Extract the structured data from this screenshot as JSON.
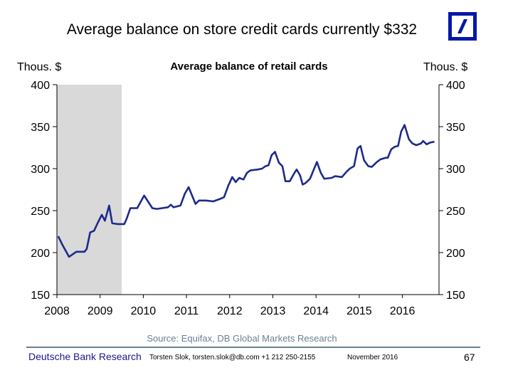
{
  "slide": {
    "title": "Average balance on store credit cards currently $332",
    "source": "Source: Equifax, DB Global Markets Research"
  },
  "logo": {
    "name": "Deutsche Bank logo",
    "color": "#0018a8"
  },
  "footer": {
    "brand": "Deutsche Bank Research",
    "contact": "Torsten Slok, torsten.slok@db.com  +1 212 250-2155",
    "date": "November 2016",
    "page": "67"
  },
  "chart_data": {
    "type": "line",
    "title": "Average balance of retail cards",
    "ylabel_left": "Thous. $",
    "ylabel_right": "Thous. $",
    "xlabel": "",
    "xlim": [
      2008,
      2016.85
    ],
    "ylim": [
      150,
      400
    ],
    "yticks": [
      150,
      200,
      250,
      300,
      350,
      400
    ],
    "xticks": [
      "2008",
      "2009",
      "2010",
      "2011",
      "2012",
      "2013",
      "2014",
      "2015",
      "2016"
    ],
    "grid": false,
    "legend": "none",
    "line_color": "#1c2a8c",
    "shaded_region": {
      "x0": 2008,
      "x1": 2009.5,
      "label": "recession",
      "color": "#d9d9d9"
    },
    "series": [
      {
        "name": "Average balance of retail cards",
        "points": [
          [
            2008.03,
            219.5
          ],
          [
            2008.13,
            209
          ],
          [
            2008.28,
            195
          ],
          [
            2008.45,
            201
          ],
          [
            2008.64,
            201
          ],
          [
            2008.69,
            204.5
          ],
          [
            2008.77,
            224
          ],
          [
            2008.86,
            226
          ],
          [
            2008.95,
            236
          ],
          [
            2009.04,
            245
          ],
          [
            2009.11,
            238
          ],
          [
            2009.21,
            256
          ],
          [
            2009.28,
            235
          ],
          [
            2009.4,
            234
          ],
          [
            2009.56,
            234
          ],
          [
            2009.62,
            241
          ],
          [
            2009.7,
            253
          ],
          [
            2009.86,
            253
          ],
          [
            2010.02,
            268
          ],
          [
            2010.21,
            253
          ],
          [
            2010.31,
            252
          ],
          [
            2010.57,
            254
          ],
          [
            2010.64,
            257
          ],
          [
            2010.7,
            254
          ],
          [
            2010.86,
            256
          ],
          [
            2010.96,
            270
          ],
          [
            2011.05,
            278
          ],
          [
            2011.21,
            258
          ],
          [
            2011.29,
            262
          ],
          [
            2011.45,
            262
          ],
          [
            2011.62,
            261
          ],
          [
            2011.78,
            264
          ],
          [
            2011.87,
            266
          ],
          [
            2011.97,
            280
          ],
          [
            2012.06,
            290
          ],
          [
            2012.14,
            284
          ],
          [
            2012.22,
            289
          ],
          [
            2012.32,
            287
          ],
          [
            2012.4,
            295
          ],
          [
            2012.48,
            298
          ],
          [
            2012.65,
            299
          ],
          [
            2012.75,
            300
          ],
          [
            2012.83,
            303
          ],
          [
            2012.9,
            304
          ],
          [
            2012.97,
            316
          ],
          [
            2013.05,
            320
          ],
          [
            2013.14,
            307
          ],
          [
            2013.22,
            303
          ],
          [
            2013.29,
            285
          ],
          [
            2013.39,
            285
          ],
          [
            2013.49,
            294
          ],
          [
            2013.55,
            299
          ],
          [
            2013.63,
            292
          ],
          [
            2013.69,
            281
          ],
          [
            2013.76,
            283
          ],
          [
            2013.86,
            288
          ],
          [
            2014.02,
            308
          ],
          [
            2014.11,
            295
          ],
          [
            2014.19,
            288
          ],
          [
            2014.36,
            289
          ],
          [
            2014.44,
            291
          ],
          [
            2014.6,
            290
          ],
          [
            2014.7,
            296
          ],
          [
            2014.78,
            300
          ],
          [
            2014.88,
            303
          ],
          [
            2014.96,
            324
          ],
          [
            2015.03,
            327
          ],
          [
            2015.11,
            310
          ],
          [
            2015.21,
            303
          ],
          [
            2015.29,
            302
          ],
          [
            2015.41,
            308
          ],
          [
            2015.49,
            311
          ],
          [
            2015.61,
            313
          ],
          [
            2015.66,
            313
          ],
          [
            2015.74,
            323
          ],
          [
            2015.82,
            326
          ],
          [
            2015.9,
            327
          ],
          [
            2015.97,
            344
          ],
          [
            2016.05,
            352
          ],
          [
            2016.15,
            335
          ],
          [
            2016.23,
            330
          ],
          [
            2016.32,
            328
          ],
          [
            2016.43,
            330
          ],
          [
            2016.48,
            333
          ],
          [
            2016.56,
            329
          ],
          [
            2016.64,
            331
          ],
          [
            2016.74,
            332
          ]
        ]
      }
    ]
  }
}
